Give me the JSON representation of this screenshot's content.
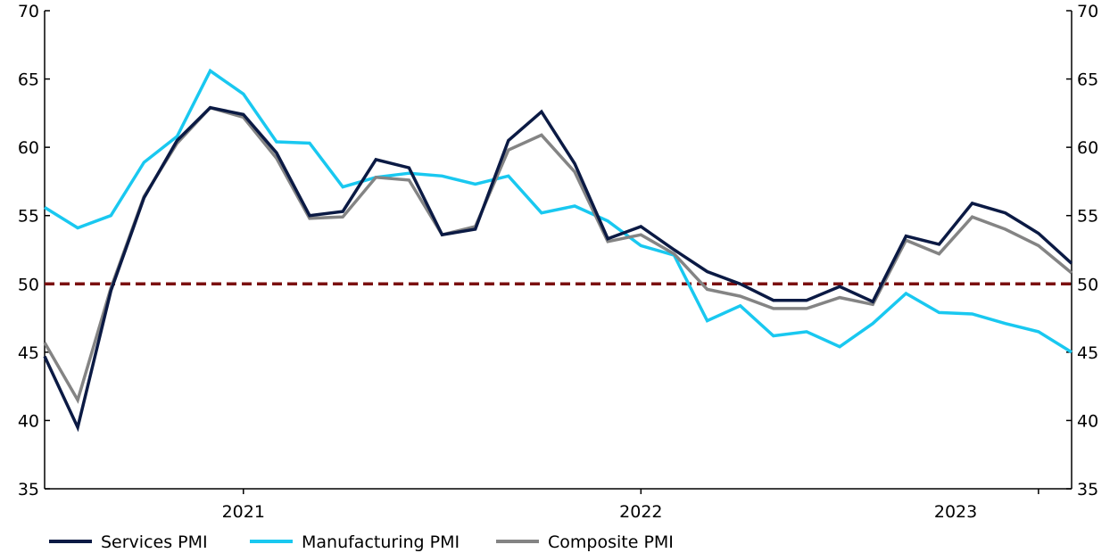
{
  "chart_data": {
    "type": "line",
    "title": "",
    "xlabel": "",
    "ylabel": "",
    "ylim": [
      35,
      70
    ],
    "yticks": [
      35,
      40,
      45,
      50,
      55,
      60,
      65,
      70
    ],
    "ytick_labels": [
      "35",
      "40",
      "45",
      "50",
      "55",
      "60",
      "65",
      "70"
    ],
    "x_start": "2020-06",
    "x_end": "2023-06",
    "year_labels": [
      {
        "label": "2021",
        "center_month": 6.0
      },
      {
        "label": "2022",
        "center_month": 18.0
      },
      {
        "label": "2023",
        "center_month": 27.5
      }
    ],
    "year_boundaries": [
      6,
      18,
      30
    ],
    "reference_line": {
      "value": 50,
      "color": "#7b1010",
      "style": "dashed"
    },
    "series": [
      {
        "name": "Services PMI",
        "color": "#0b1a44",
        "values": [
          44.7,
          39.5,
          49.5,
          56.3,
          60.5,
          62.9,
          62.4,
          59.6,
          55.0,
          55.3,
          59.1,
          58.5,
          53.6,
          54.0,
          60.5,
          62.6,
          58.8,
          53.3,
          54.2,
          52.5,
          50.9,
          50.0,
          48.8,
          48.8,
          49.8,
          48.7,
          53.5,
          52.9,
          55.9,
          55.2,
          53.7,
          51.5
        ]
      },
      {
        "name": "Manufacturing PMI",
        "color": "#19c8f0",
        "values": [
          55.6,
          54.1,
          55.0,
          58.9,
          60.8,
          65.6,
          63.9,
          60.4,
          60.3,
          57.1,
          57.8,
          58.1,
          57.9,
          57.3,
          57.9,
          55.2,
          55.7,
          54.6,
          52.8,
          52.1,
          47.3,
          48.4,
          46.2,
          46.5,
          45.4,
          47.1,
          49.3,
          47.9,
          47.8,
          47.1,
          46.5,
          45.0
        ]
      },
      {
        "name": "Composite PMI",
        "color": "#848484",
        "values": [
          45.7,
          41.5,
          49.7,
          56.4,
          60.3,
          62.9,
          62.2,
          59.2,
          54.8,
          54.9,
          57.8,
          57.6,
          53.6,
          54.2,
          59.8,
          60.9,
          58.2,
          53.1,
          53.6,
          52.2,
          49.6,
          49.1,
          48.2,
          48.2,
          49.0,
          48.5,
          53.2,
          52.2,
          54.9,
          54.0,
          52.8,
          50.8
        ]
      }
    ],
    "legend": {
      "position": "bottom-left",
      "entries": [
        "Services PMI",
        "Manufacturing PMI",
        "Composite PMI"
      ]
    }
  }
}
